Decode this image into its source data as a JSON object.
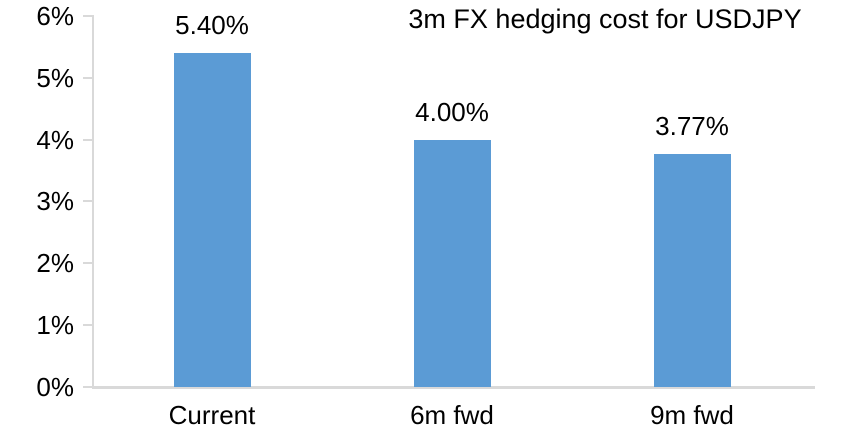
{
  "chart_data": {
    "type": "bar",
    "title": "3m FX hedging cost for USDJPY",
    "categories": [
      "Current",
      "6m fwd",
      "9m fwd"
    ],
    "values": [
      5.4,
      4.0,
      3.77
    ],
    "value_labels": [
      "5.40%",
      "4.00%",
      "3.77%"
    ],
    "yticks": [
      {
        "value": 0,
        "label": "0%"
      },
      {
        "value": 1,
        "label": "1%"
      },
      {
        "value": 2,
        "label": "2%"
      },
      {
        "value": 3,
        "label": "3%"
      },
      {
        "value": 4,
        "label": "4%"
      },
      {
        "value": 5,
        "label": "5%"
      },
      {
        "value": 6,
        "label": "6%"
      }
    ],
    "ylim": [
      0,
      6
    ],
    "xlabel": "",
    "ylabel": "",
    "grid": false,
    "legend_position": "none",
    "bar_color": "#5b9bd5",
    "axis_color": "#d9d9d9",
    "text_color": "#000000",
    "background_color": "#ffffff"
  }
}
